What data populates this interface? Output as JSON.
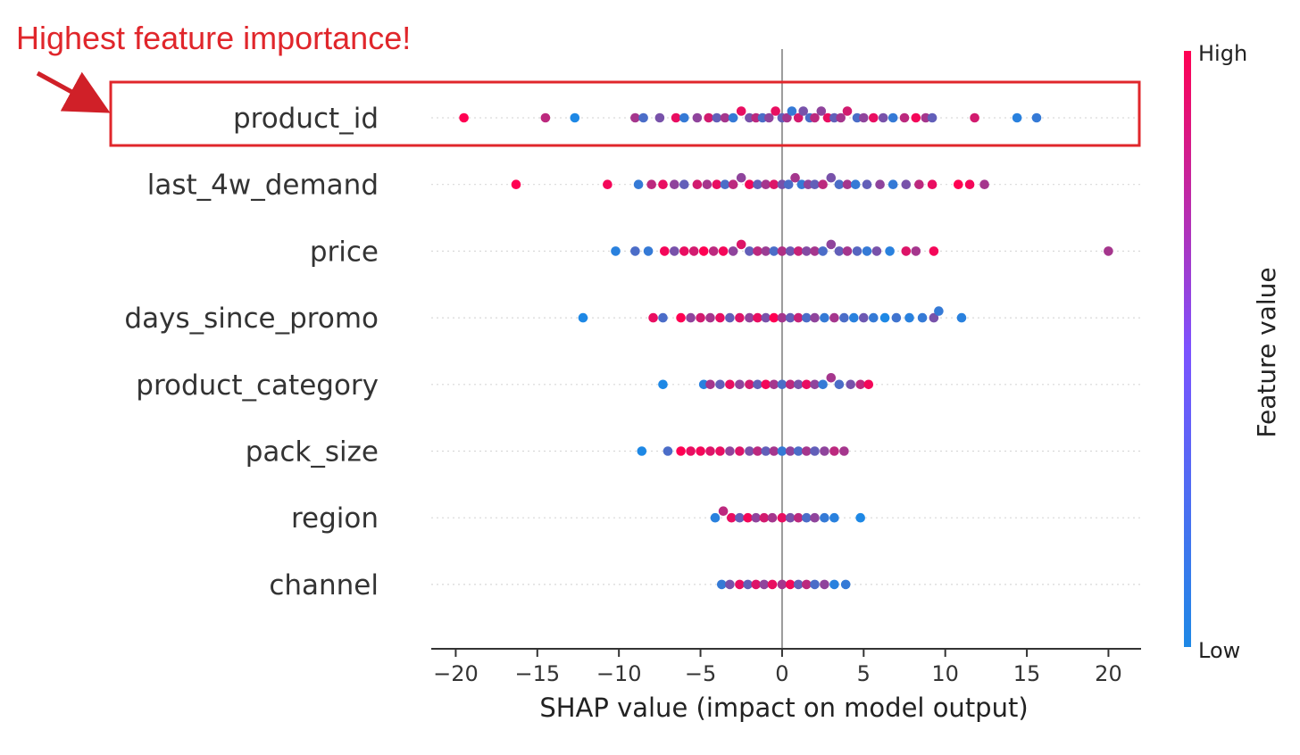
{
  "annotation": {
    "text": "Highest feature importance!",
    "color": "#e0262b",
    "highlight_feature": "product_id"
  },
  "colors": {
    "low": "#1e88e5",
    "high": "#ff0052",
    "axis": "#333333",
    "zero_line": "#999999",
    "grid": "#d9d9d9"
  },
  "chart_data": {
    "type": "scatter",
    "subtype": "shap_beeswarm",
    "xlabel": "SHAP value (impact on model output)",
    "xlim": [
      -21.5,
      22
    ],
    "xticks": [
      -20,
      -15,
      -10,
      -5,
      0,
      5,
      10,
      15,
      20
    ],
    "xtick_labels": [
      "−20",
      "−15",
      "−10",
      "−5",
      "0",
      "5",
      "10",
      "15",
      "20"
    ],
    "colorbar": {
      "title": "Feature value",
      "high_label": "High",
      "low_label": "Low"
    },
    "features": [
      {
        "name": "product_id",
        "points": [
          [
            -19.5,
            1
          ],
          [
            -14.5,
            0.7
          ],
          [
            -12.7,
            0
          ],
          [
            -9,
            0.6
          ],
          [
            -8.5,
            0.2
          ],
          [
            -7.5,
            0.4
          ],
          [
            -6.5,
            0.9
          ],
          [
            -6,
            0.1
          ],
          [
            -5.2,
            0.5
          ],
          [
            -4.5,
            0.8
          ],
          [
            -4,
            0.3
          ],
          [
            -3.5,
            0.6
          ],
          [
            -3,
            0.1
          ],
          [
            -2.5,
            0.9
          ],
          [
            -2,
            0.4
          ],
          [
            -1.6,
            0.7
          ],
          [
            -1.2,
            0.2
          ],
          [
            -0.8,
            0.5
          ],
          [
            -0.4,
            0.9
          ],
          [
            0,
            0.3
          ],
          [
            0.3,
            0.6
          ],
          [
            0.6,
            0.1
          ],
          [
            1,
            0.8
          ],
          [
            1.3,
            0.4
          ],
          [
            1.7,
            0.2
          ],
          [
            2,
            0.7
          ],
          [
            2.4,
            0.5
          ],
          [
            2.8,
            0.9
          ],
          [
            3.2,
            0.3
          ],
          [
            3.6,
            0.6
          ],
          [
            4,
            0.8
          ],
          [
            4.6,
            0.2
          ],
          [
            5,
            0.5
          ],
          [
            5.6,
            0.9
          ],
          [
            6.2,
            0.4
          ],
          [
            6.8,
            0.1
          ],
          [
            7.5,
            0.7
          ],
          [
            8.2,
            0.95
          ],
          [
            8.8,
            0.6
          ],
          [
            9.2,
            0.3
          ],
          [
            11.8,
            0.8
          ],
          [
            14.4,
            0.05
          ],
          [
            15.6,
            0.1
          ]
        ]
      },
      {
        "name": "last_4w_demand",
        "points": [
          [
            -16.3,
            1
          ],
          [
            -10.7,
            0.95
          ],
          [
            -8.8,
            0.1
          ],
          [
            -8,
            0.7
          ],
          [
            -7.3,
            0.9
          ],
          [
            -6.6,
            0.5
          ],
          [
            -6,
            0.3
          ],
          [
            -5.2,
            0.8
          ],
          [
            -4.6,
            0.6
          ],
          [
            -4,
            0.9
          ],
          [
            -3.5,
            0.2
          ],
          [
            -3,
            0.7
          ],
          [
            -2.5,
            0.5
          ],
          [
            -2,
            0.95
          ],
          [
            -1.5,
            0.3
          ],
          [
            -1,
            0.6
          ],
          [
            -0.5,
            0.85
          ],
          [
            0,
            0.4
          ],
          [
            0.4,
            0.2
          ],
          [
            0.8,
            0.6
          ],
          [
            1.2,
            0.1
          ],
          [
            1.6,
            0.5
          ],
          [
            2,
            0.3
          ],
          [
            2.5,
            0.7
          ],
          [
            3,
            0.4
          ],
          [
            3.5,
            0.2
          ],
          [
            4,
            0.6
          ],
          [
            4.5,
            0.1
          ],
          [
            5.2,
            0.3
          ],
          [
            6,
            0.5
          ],
          [
            6.8,
            0.1
          ],
          [
            7.6,
            0.4
          ],
          [
            8.4,
            0.7
          ],
          [
            9.2,
            0.9
          ],
          [
            10.8,
            1
          ],
          [
            11.5,
            0.95
          ],
          [
            12.4,
            0.6
          ]
        ]
      },
      {
        "name": "price",
        "points": [
          [
            -10.2,
            0.05
          ],
          [
            -9,
            0.2
          ],
          [
            -8.2,
            0.1
          ],
          [
            -7.2,
            0.95
          ],
          [
            -6.6,
            0.4
          ],
          [
            -6,
            0.9
          ],
          [
            -5.4,
            0.8
          ],
          [
            -4.8,
            1
          ],
          [
            -4.2,
            0.7
          ],
          [
            -3.6,
            0.95
          ],
          [
            -3,
            0.5
          ],
          [
            -2.5,
            0.85
          ],
          [
            -2,
            0.3
          ],
          [
            -1.5,
            0.7
          ],
          [
            -1,
            0.55
          ],
          [
            -0.5,
            0.2
          ],
          [
            0,
            0.65
          ],
          [
            0.5,
            0.35
          ],
          [
            1,
            0.75
          ],
          [
            1.5,
            0.45
          ],
          [
            2,
            0.6
          ],
          [
            2.5,
            0.2
          ],
          [
            3,
            0.5
          ],
          [
            3.5,
            0.3
          ],
          [
            4,
            0.6
          ],
          [
            4.6,
            0.25
          ],
          [
            5.2,
            0.1
          ],
          [
            5.8,
            0.4
          ],
          [
            6.6,
            0.05
          ],
          [
            7.6,
            0.85
          ],
          [
            8.2,
            0.6
          ],
          [
            9.3,
            0.95
          ],
          [
            20,
            0.6
          ]
        ]
      },
      {
        "name": "days_since_promo",
        "points": [
          [
            -12.2,
            0
          ],
          [
            -7.9,
            0.9
          ],
          [
            -7.3,
            0.2
          ],
          [
            -6.2,
            1
          ],
          [
            -5.6,
            0.5
          ],
          [
            -5,
            0.8
          ],
          [
            -4.4,
            0.6
          ],
          [
            -3.8,
            0.9
          ],
          [
            -3.2,
            0.3
          ],
          [
            -2.6,
            0.85
          ],
          [
            -2,
            0.5
          ],
          [
            -1.5,
            0.9
          ],
          [
            -1,
            0.4
          ],
          [
            -0.5,
            1
          ],
          [
            0,
            0.6
          ],
          [
            0.5,
            0.3
          ],
          [
            1,
            0.75
          ],
          [
            1.5,
            0.2
          ],
          [
            2,
            0.5
          ],
          [
            2.6,
            0.1
          ],
          [
            3.2,
            0.6
          ],
          [
            3.8,
            0.2
          ],
          [
            4.4,
            0.05
          ],
          [
            5,
            0.35
          ],
          [
            5.6,
            0.1
          ],
          [
            6.3,
            0
          ],
          [
            7,
            0.15
          ],
          [
            7.8,
            0.05
          ],
          [
            8.6,
            0.1
          ],
          [
            9.3,
            0.4
          ],
          [
            9.6,
            0.1
          ],
          [
            11,
            0.05
          ]
        ]
      },
      {
        "name": "product_category",
        "points": [
          [
            -7.3,
            0
          ],
          [
            -4.8,
            0.05
          ],
          [
            -4.4,
            0.6
          ],
          [
            -3.8,
            0.3
          ],
          [
            -3.2,
            0.9
          ],
          [
            -2.6,
            0.5
          ],
          [
            -2,
            0.8
          ],
          [
            -1.5,
            0.3
          ],
          [
            -1,
            0.95
          ],
          [
            -0.5,
            0.6
          ],
          [
            0,
            0.2
          ],
          [
            0.5,
            0.7
          ],
          [
            1,
            0.4
          ],
          [
            1.5,
            0.9
          ],
          [
            2,
            0.5
          ],
          [
            2.5,
            0.1
          ],
          [
            3,
            0.6
          ],
          [
            3.5,
            0.2
          ],
          [
            4.2,
            0.4
          ],
          [
            4.8,
            0.7
          ],
          [
            5.3,
            0.95
          ]
        ]
      },
      {
        "name": "pack_size",
        "points": [
          [
            -8.6,
            0
          ],
          [
            -7,
            0.2
          ],
          [
            -6.2,
            1
          ],
          [
            -5.6,
            0.9
          ],
          [
            -5,
            0.95
          ],
          [
            -4.4,
            0.85
          ],
          [
            -3.8,
            0.9
          ],
          [
            -3.2,
            0.5
          ],
          [
            -2.6,
            0.85
          ],
          [
            -2,
            0.4
          ],
          [
            -1.5,
            0.7
          ],
          [
            -1,
            0.3
          ],
          [
            -0.5,
            0.6
          ],
          [
            0,
            0.1
          ],
          [
            0.5,
            0.5
          ],
          [
            1,
            0.2
          ],
          [
            1.5,
            0.6
          ],
          [
            2,
            0.3
          ],
          [
            2.6,
            0.5
          ],
          [
            3.2,
            0.7
          ],
          [
            3.8,
            0.6
          ]
        ]
      },
      {
        "name": "region",
        "points": [
          [
            -4.1,
            0.05
          ],
          [
            -3.6,
            0.7
          ],
          [
            -3.1,
            0.9
          ],
          [
            -2.6,
            0.3
          ],
          [
            -2.1,
            0.95
          ],
          [
            -1.6,
            0.5
          ],
          [
            -1.1,
            0.8
          ],
          [
            -0.6,
            0.6
          ],
          [
            0,
            0.9
          ],
          [
            0.5,
            0.4
          ],
          [
            1,
            0.7
          ],
          [
            1.5,
            0.2
          ],
          [
            2,
            0.5
          ],
          [
            2.6,
            0.1
          ],
          [
            3.2,
            0.05
          ],
          [
            4.8,
            0
          ]
        ]
      },
      {
        "name": "channel",
        "points": [
          [
            -3.7,
            0.1
          ],
          [
            -3.2,
            0.4
          ],
          [
            -2.6,
            0.9
          ],
          [
            -2.1,
            0.3
          ],
          [
            -1.6,
            0.85
          ],
          [
            -1.1,
            0.5
          ],
          [
            -0.6,
            0.9
          ],
          [
            0,
            0.6
          ],
          [
            0.5,
            0.95
          ],
          [
            1,
            0.3
          ],
          [
            1.5,
            0.7
          ],
          [
            2,
            0.2
          ],
          [
            2.6,
            0.5
          ],
          [
            3.2,
            0.05
          ],
          [
            3.9,
            0.1
          ]
        ]
      }
    ]
  }
}
